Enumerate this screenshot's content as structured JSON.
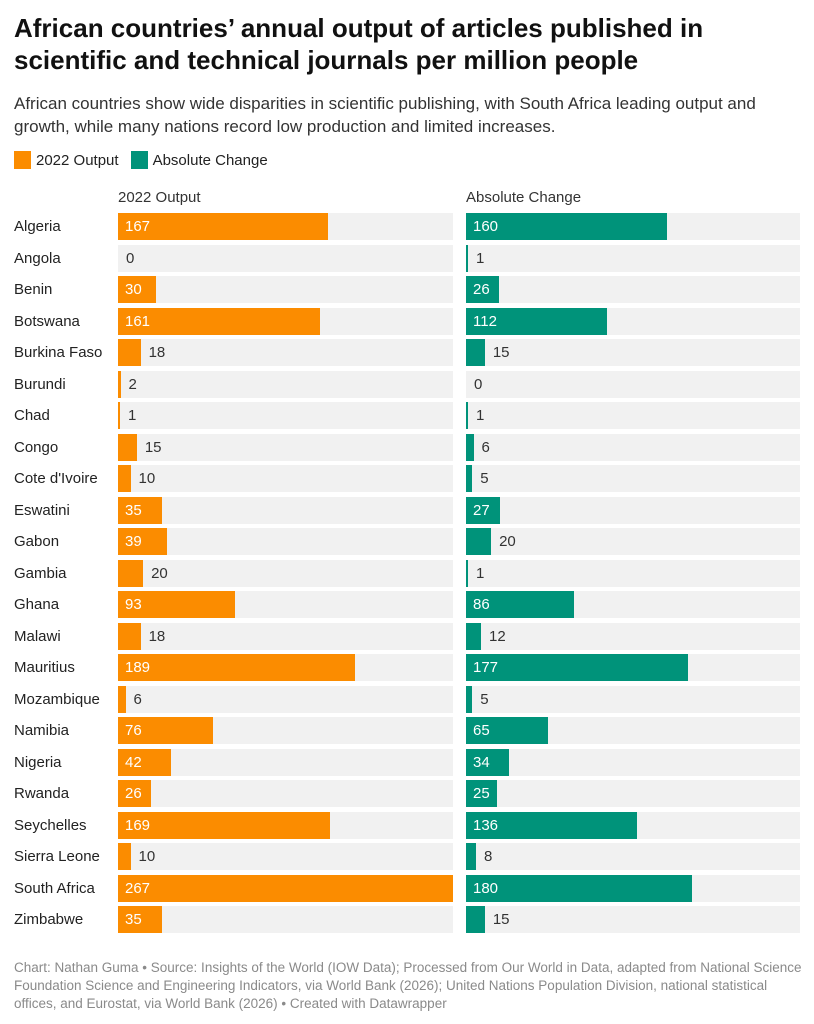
{
  "title": "African countries’ annual output of articles published in scientific and technical journals per million people",
  "subtitle": "African countries show wide disparities in scientific publishing, with South Africa leading output and growth, while many nations record low production and limited increases.",
  "footer": "Chart: Nathan Guma  • Source: Insights of the World (IOW Data); Processed from Our World in Data, adapted from National Science Foundation Science and Engineering Indicators, via World Bank (2026); United Nations Population Division, national statistical offices, and Eurostat, via World Bank (2026)  • Created with Datawrapper",
  "chart_data": {
    "type": "bar",
    "orientation": "horizontal",
    "legend": [
      {
        "name": "2022 Output",
        "color": "#fb8c00"
      },
      {
        "name": "Absolute Change",
        "color": "#00937a"
      }
    ],
    "legend_placement": "top-left",
    "xlim": [
      0,
      267
    ],
    "grid": false,
    "categories": [
      "Algeria",
      "Angola",
      "Benin",
      "Botswana",
      "Burkina Faso",
      "Burundi",
      "Chad",
      "Congo",
      "Cote d'Ivoire",
      "Eswatini",
      "Gabon",
      "Gambia",
      "Ghana",
      "Malawi",
      "Mauritius",
      "Mozambique",
      "Namibia",
      "Nigeria",
      "Rwanda",
      "Seychelles",
      "Sierra Leone",
      "South Africa",
      "Zimbabwe"
    ],
    "series": [
      {
        "name": "2022 Output",
        "color": "#fb8c00",
        "values": [
          167,
          0,
          30,
          161,
          18,
          2,
          1,
          15,
          10,
          35,
          39,
          20,
          93,
          18,
          189,
          6,
          76,
          42,
          26,
          169,
          10,
          267,
          35
        ]
      },
      {
        "name": "Absolute Change",
        "color": "#00937a",
        "values": [
          160,
          1,
          26,
          112,
          15,
          0,
          1,
          6,
          5,
          27,
          20,
          1,
          86,
          12,
          177,
          5,
          65,
          34,
          25,
          136,
          8,
          180,
          15
        ]
      }
    ]
  }
}
